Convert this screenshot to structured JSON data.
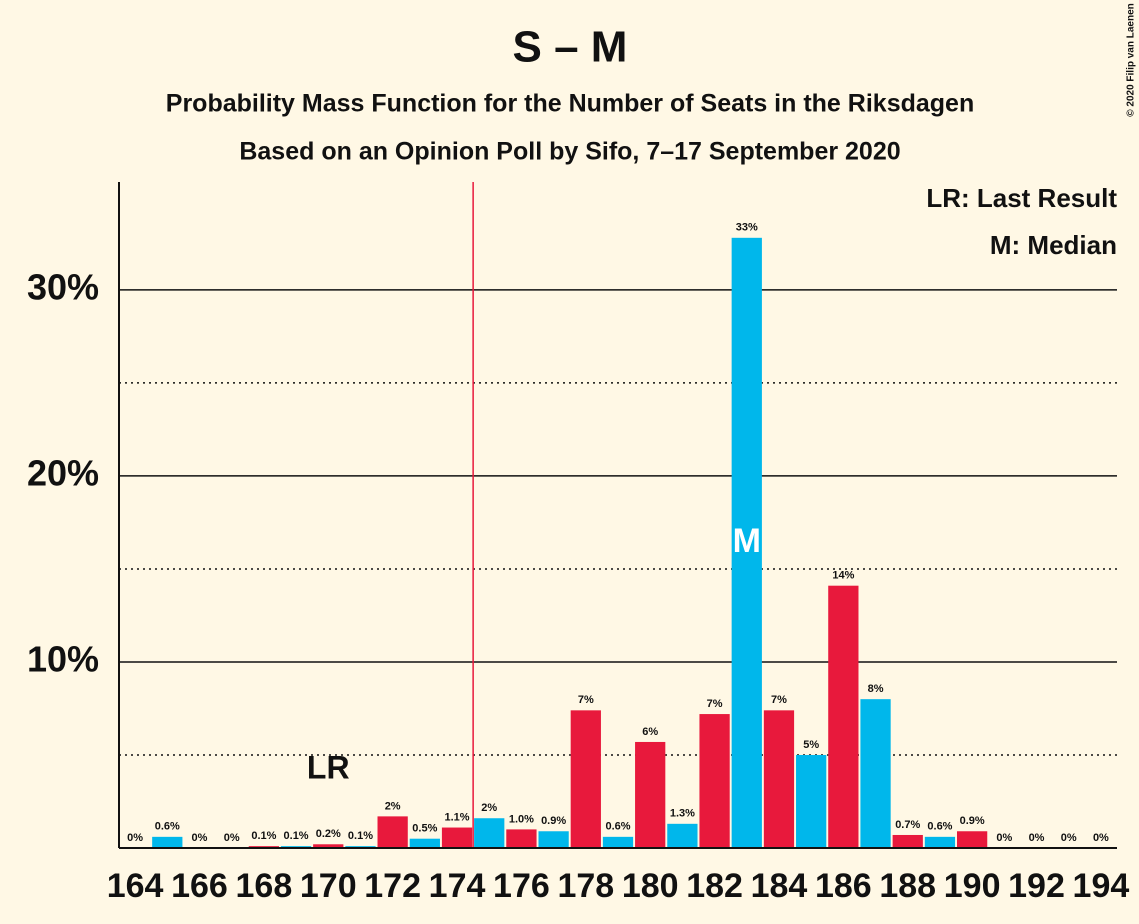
{
  "chart_data": {
    "type": "bar",
    "title": "S – M",
    "subtitle": "Probability Mass Function for the Number of Seats in the Riksdagen",
    "subtitle2": "Based on an Opinion Poll by Sifo, 7–17 September 2020",
    "credit": "© 2020 Filip van Laenen",
    "x": [
      164,
      165,
      166,
      167,
      168,
      169,
      170,
      171,
      172,
      173,
      174,
      175,
      176,
      177,
      178,
      179,
      180,
      181,
      182,
      183,
      184,
      185,
      186,
      187,
      188,
      189,
      190,
      191,
      192,
      193,
      194
    ],
    "values": [
      0,
      0.6,
      0,
      0,
      0.1,
      0.1,
      0.2,
      0.1,
      1.7,
      0.5,
      1.1,
      1.6,
      1.0,
      0.9,
      7.4,
      0.6,
      5.7,
      1.3,
      7.2,
      32.8,
      7.4,
      5.0,
      14.1,
      8.0,
      0.7,
      0.6,
      0.9,
      0,
      0,
      0,
      0
    ],
    "value_labels": [
      "0%",
      "0.6%",
      "0%",
      "0%",
      "0.1%",
      "0.1%",
      "0.2%",
      "0.1%",
      "2%",
      "0.5%",
      "1.1%",
      "2%",
      "1.0%",
      "0.9%",
      "7%",
      "0.6%",
      "6%",
      "1.3%",
      "7%",
      "33%",
      "7%",
      "5%",
      "14%",
      "8%",
      "0.7%",
      "0.6%",
      "0.9%",
      "0%",
      "0%",
      "0%",
      "0%"
    ],
    "bar_colors": [
      "#e8193c",
      "#00b7eb"
    ],
    "xlim": [
      163.5,
      194.5
    ],
    "xticks": [
      164,
      166,
      168,
      170,
      172,
      174,
      176,
      178,
      180,
      182,
      184,
      186,
      188,
      190,
      192,
      194
    ],
    "ylim": [
      0,
      35.8
    ],
    "yticks": [
      {
        "value": 10,
        "label": "10%"
      },
      {
        "value": 20,
        "label": "20%"
      },
      {
        "value": 30,
        "label": "30%"
      }
    ],
    "minor_yticks": [
      5,
      15,
      25
    ],
    "grid": true,
    "majority_line": 174.5,
    "annotations": [
      {
        "label": "LR",
        "x": 170,
        "kind": "last_result"
      },
      {
        "label": "M",
        "x": 183,
        "kind": "median"
      }
    ],
    "legend": [
      "LR: Last Result",
      "M: Median"
    ],
    "legend_position": "top-right"
  }
}
